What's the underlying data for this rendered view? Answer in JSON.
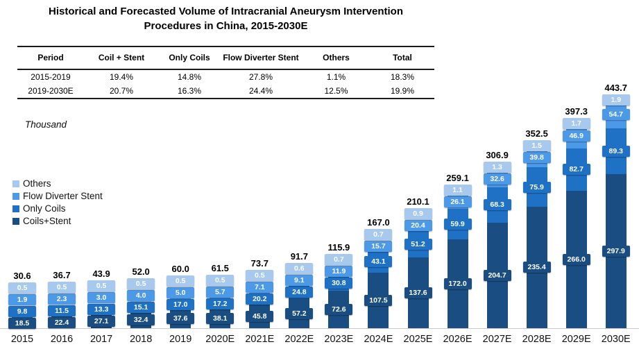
{
  "title": {
    "line1": "Historical and Forecasted Volume of Intracranial Aneurysm Intervention",
    "line2": "Procedures in China, 2015-2030E"
  },
  "cagr_table": {
    "headers": [
      "Period",
      "Coil + Stent",
      "Only Coils",
      "Flow Diverter Stent",
      "Others",
      "Total"
    ],
    "rows": [
      [
        "2015-2019",
        "19.4%",
        "14.8%",
        "27.8%",
        "1.1%",
        "18.3%"
      ],
      [
        "2019-2030E",
        "20.7%",
        "16.3%",
        "24.4%",
        "12.5%",
        "19.9%"
      ]
    ]
  },
  "chart_data": {
    "type": "bar",
    "stacked": true,
    "unit_label": "Thousand",
    "grid": false,
    "legend_position": "left",
    "ylim": [
      0,
      460
    ],
    "axis_line_color": "#c9c9c9",
    "total_label_color": "#000000",
    "categories": [
      "2015",
      "2016",
      "2017",
      "2018",
      "2019",
      "2020E",
      "2021E",
      "2022E",
      "2023E",
      "2024E",
      "2025E",
      "2026E",
      "2027E",
      "2028E",
      "2029E",
      "2030E"
    ],
    "series": [
      {
        "name": "Coils+Stent",
        "color": "#1A4E82",
        "values": [
          18.5,
          22.4,
          27.1,
          32.4,
          37.6,
          38.1,
          45.8,
          57.2,
          72.6,
          107.5,
          137.6,
          172.0,
          204.7,
          235.4,
          266.0,
          297.9
        ]
      },
      {
        "name": "Only Coils",
        "color": "#1E71C5",
        "values": [
          9.8,
          11.5,
          13.3,
          15.1,
          17.0,
          17.2,
          20.2,
          24.8,
          30.8,
          43.1,
          51.2,
          59.9,
          68.3,
          75.9,
          82.7,
          89.3
        ]
      },
      {
        "name": "Flow Diverter Stent",
        "color": "#4C99E8",
        "values": [
          1.9,
          2.3,
          3.0,
          4.0,
          5.0,
          5.7,
          7.1,
          9.1,
          11.9,
          15.7,
          20.4,
          26.1,
          32.6,
          39.8,
          46.9,
          54.7
        ]
      },
      {
        "name": "Others",
        "color": "#A6C9ED",
        "values": [
          0.5,
          0.5,
          0.5,
          0.5,
          0.5,
          0.5,
          0.5,
          0.6,
          0.7,
          0.7,
          0.9,
          1.1,
          1.3,
          1.5,
          1.7,
          1.9
        ]
      }
    ],
    "totals": [
      30.6,
      36.7,
      43.9,
      52.0,
      60.0,
      61.5,
      73.7,
      91.7,
      115.9,
      167.0,
      210.1,
      259.1,
      306.9,
      352.5,
      397.3,
      443.7
    ]
  }
}
